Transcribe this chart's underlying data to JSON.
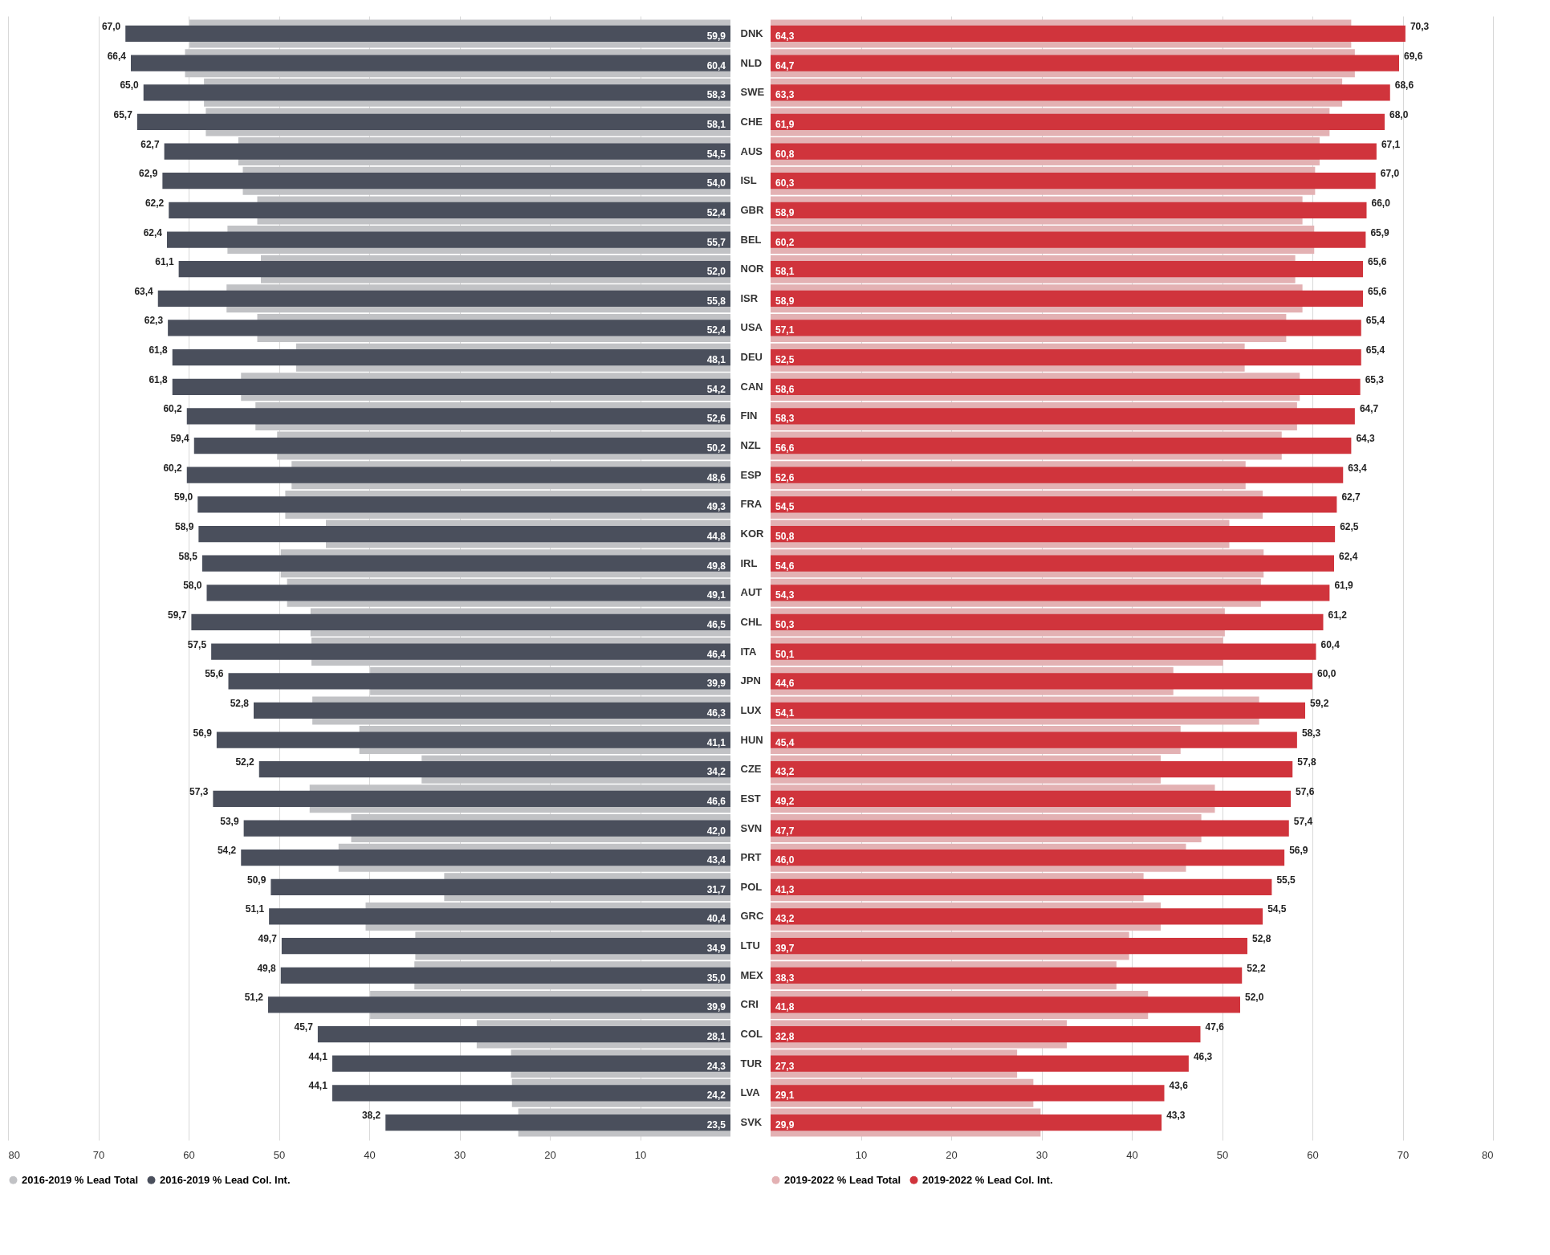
{
  "chart_data": [
    {
      "type": "bar",
      "orientation": "horizontal",
      "categories": [
        "DNK",
        "NLD",
        "SWE",
        "CHE",
        "AUS",
        "ISL",
        "GBR",
        "BEL",
        "NOR",
        "ISR",
        "USA",
        "DEU",
        "CAN",
        "FIN",
        "NZL",
        "ESP",
        "FRA",
        "KOR",
        "IRL",
        "AUT",
        "CHL",
        "ITA",
        "JPN",
        "LUX",
        "HUN",
        "CZE",
        "EST",
        "SVN",
        "PRT",
        "POL",
        "GRC",
        "LTU",
        "MEX",
        "CRI",
        "COL",
        "TUR",
        "LVA",
        "SVK"
      ],
      "xlim": [
        80,
        0
      ],
      "xticks": [
        80,
        70,
        60,
        50,
        40,
        30,
        20,
        10
      ],
      "grid": "x",
      "legend": "bottom",
      "series": [
        {
          "name": "2016-2019 % Lead Total",
          "color": "#c1c2c5",
          "values": [
            59.9,
            60.4,
            58.3,
            58.1,
            54.5,
            54.0,
            52.4,
            55.7,
            52.0,
            55.8,
            52.4,
            48.1,
            54.2,
            52.6,
            50.2,
            48.6,
            49.3,
            44.8,
            49.8,
            49.1,
            46.5,
            46.4,
            39.9,
            46.3,
            41.1,
            34.2,
            46.6,
            42.0,
            43.4,
            31.7,
            40.4,
            34.9,
            35.0,
            39.9,
            28.1,
            24.3,
            24.2,
            23.5
          ],
          "value_labels": [
            "59,9",
            "60,4",
            "58,3",
            "58,1",
            "54,5",
            "54,0",
            "52,4",
            "55,7",
            "52,0",
            "55,8",
            "52,4",
            "48,1",
            "54,2",
            "52,6",
            "50,2",
            "48,6",
            "49,3",
            "44,8",
            "49,8",
            "49,1",
            "46,5",
            "46,4",
            "39,9",
            "46,3",
            "41,1",
            "34,2",
            "46,6",
            "42,0",
            "43,4",
            "31,7",
            "40,4",
            "34,9",
            "35,0",
            "39,9",
            "28,1",
            "24,3",
            "24,2",
            "23,5"
          ]
        },
        {
          "name": "2016-2019 % Lead Col. Int.",
          "color": "#4a4f5c",
          "values": [
            67.0,
            66.4,
            65.0,
            65.7,
            62.7,
            62.9,
            62.2,
            62.4,
            61.1,
            63.4,
            62.3,
            61.8,
            61.8,
            60.2,
            59.4,
            60.2,
            59.0,
            58.9,
            58.5,
            58.0,
            59.7,
            57.5,
            55.6,
            52.8,
            56.9,
            52.2,
            57.3,
            53.9,
            54.2,
            50.9,
            51.1,
            49.7,
            49.8,
            51.2,
            45.7,
            44.1,
            44.1,
            38.2
          ],
          "value_labels": [
            "67,0",
            "66,4",
            "65,0",
            "65,7",
            "62,7",
            "62,9",
            "62,2",
            "62,4",
            "61,1",
            "63,4",
            "62,3",
            "61,8",
            "61,8",
            "60,2",
            "59,4",
            "60,2",
            "59,0",
            "58,9",
            "58,5",
            "58,0",
            "59,7",
            "57,5",
            "55,6",
            "52,8",
            "56,9",
            "52,2",
            "57,3",
            "53,9",
            "54,2",
            "50,9",
            "51,1",
            "49,7",
            "49,8",
            "51,2",
            "45,7",
            "44,1",
            "44,1",
            "38,2"
          ]
        }
      ]
    },
    {
      "type": "bar",
      "orientation": "horizontal",
      "categories": [
        null,
        null,
        null,
        null,
        null,
        null,
        null,
        null,
        null,
        null,
        null,
        null,
        null,
        null,
        null,
        null,
        null,
        null,
        null,
        null,
        null,
        null,
        null,
        null,
        null,
        null,
        null,
        null,
        null,
        null,
        null,
        null,
        null,
        null,
        null,
        null,
        null,
        null
      ],
      "xlim": [
        0,
        80
      ],
      "xticks": [
        10,
        20,
        30,
        40,
        50,
        60,
        70,
        80
      ],
      "grid": "x",
      "legend": "bottom",
      "tick_labels": "x",
      "series": [
        {
          "name": "2019-2022 % Lead Total",
          "color": "#e3b1b3",
          "values": [
            64.3,
            64.7,
            63.3,
            61.9,
            60.8,
            60.3,
            58.9,
            60.2,
            58.1,
            58.9,
            57.1,
            52.5,
            58.6,
            58.3,
            56.6,
            52.6,
            54.5,
            50.8,
            54.6,
            54.3,
            50.3,
            50.1,
            44.6,
            54.1,
            45.4,
            43.2,
            49.2,
            47.7,
            46.0,
            41.3,
            43.2,
            39.7,
            38.3,
            41.8,
            32.8,
            27.3,
            29.1,
            29.9
          ],
          "value_labels": [
            "64,3",
            "64,7",
            "63,3",
            "61,9",
            "60,8",
            "60,3",
            "58,9",
            "60,2",
            "58,1",
            "58,9",
            "57,1",
            "52,5",
            "58,6",
            "58,3",
            "56,6",
            "52,6",
            "54,5",
            "50,8",
            "54,6",
            "54,3",
            "50,3",
            "50,1",
            "44,6",
            "54,1",
            "45,4",
            "43,2",
            "49,2",
            "47,7",
            "46,0",
            "41,3",
            "43,2",
            "39,7",
            "38,3",
            "41,8",
            "32,8",
            "27,3",
            "29,1",
            "29,9"
          ]
        },
        {
          "name": "2019-2022 % Lead Col. Int.",
          "color": "#d0343c",
          "values": [
            70.3,
            69.6,
            68.6,
            68.0,
            67.1,
            67.0,
            66.0,
            65.9,
            65.6,
            65.6,
            65.4,
            65.4,
            65.3,
            64.7,
            64.3,
            63.4,
            62.7,
            62.5,
            62.4,
            61.9,
            61.2,
            60.4,
            60.0,
            59.2,
            58.3,
            57.8,
            57.6,
            57.4,
            56.9,
            55.5,
            54.5,
            52.8,
            52.2,
            52.0,
            47.6,
            46.3,
            43.6,
            43.3
          ],
          "value_labels": [
            "70,3",
            "69,6",
            "68,6",
            "68,0",
            "67,1",
            "67,0",
            "66,0",
            "65,9",
            "65,6",
            "65,6",
            "65,4",
            "65,4",
            "65,3",
            "64,7",
            "64,3",
            "63,4",
            "62,7",
            "62,5",
            "62,4",
            "61,9",
            "61,2",
            "60,4",
            "60,0",
            "59,2",
            "58,3",
            "57,8",
            "57,6",
            "57,4",
            "56,9",
            "55,5",
            "54,5",
            "52,8",
            "52,2",
            "52,0",
            "47,6",
            "46,3",
            "43,6",
            "43,3"
          ]
        }
      ]
    }
  ]
}
